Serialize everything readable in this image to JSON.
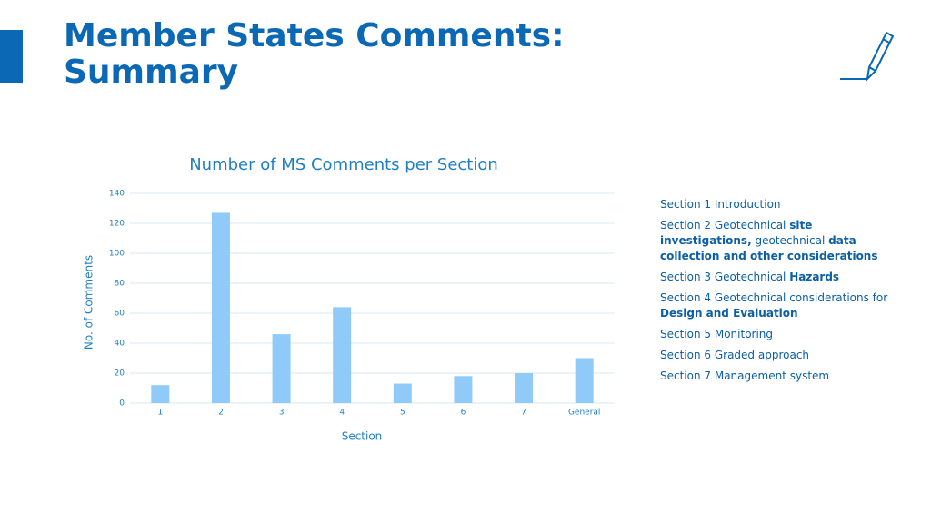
{
  "header": {
    "title": "Member States Comments: Summary"
  },
  "chart_data": {
    "type": "bar",
    "title": "Number of MS Comments per Section",
    "x_label": "Section",
    "y_label": "No. of Comments",
    "categories": [
      "1",
      "2",
      "3",
      "4",
      "5",
      "6",
      "7",
      "General"
    ],
    "values": [
      12,
      127,
      46,
      64,
      13,
      18,
      20,
      30
    ],
    "color": "#90caf9",
    "ylim": [
      0,
      140
    ],
    "yticks": [
      0,
      20,
      40,
      60,
      80,
      100,
      120,
      140
    ],
    "grid": true
  },
  "sections": [
    {
      "runs": [
        {
          "text": "Section 1 Introduction",
          "bold": false
        }
      ]
    },
    {
      "runs": [
        {
          "text": "Section 2 Geotechnical ",
          "bold": false
        },
        {
          "text": "site investigations,",
          "bold": true
        },
        {
          "text": " geotechnical ",
          "bold": false
        },
        {
          "text": "data collection and other considerations",
          "bold": true
        }
      ]
    },
    {
      "runs": [
        {
          "text": "Section 3 Geotechnical ",
          "bold": false
        },
        {
          "text": "Hazards",
          "bold": true
        }
      ]
    },
    {
      "runs": [
        {
          "text": "Section 4 Geotechnical considerations for ",
          "bold": false
        },
        {
          "text": "Design and Evaluation",
          "bold": true
        }
      ]
    },
    {
      "runs": [
        {
          "text": "Section 5 Monitoring",
          "bold": false
        }
      ]
    },
    {
      "runs": [
        {
          "text": "Section 6 Graded approach",
          "bold": false
        }
      ]
    },
    {
      "runs": [
        {
          "text": "Section 7 Management system",
          "bold": false
        }
      ]
    }
  ]
}
